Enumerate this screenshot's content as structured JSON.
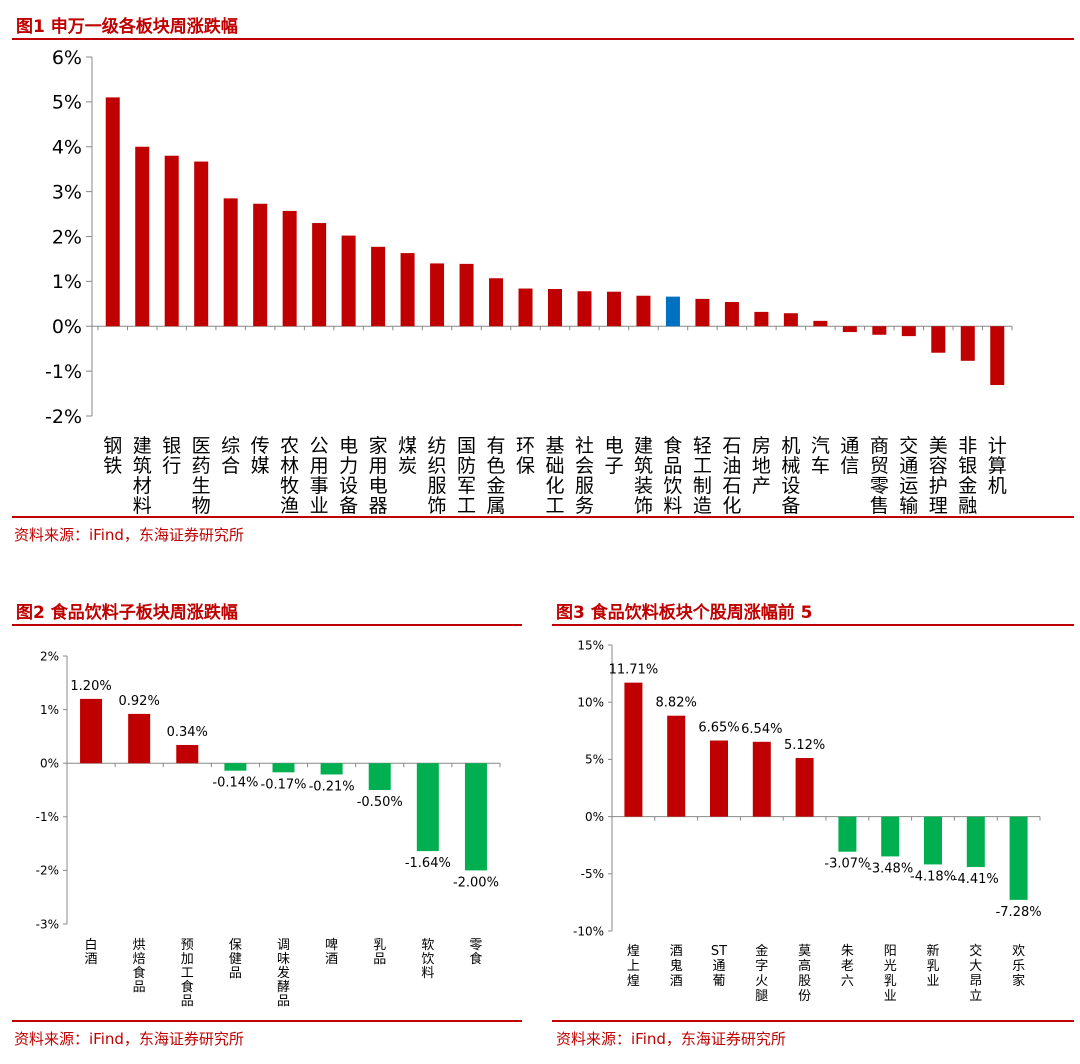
{
  "colors": {
    "brand": "#c00000",
    "neg": "#00b050",
    "highlight": "#0070c0",
    "bar": "#c00000"
  },
  "fig1": {
    "title": "图1 申万一级各板块周涨跌幅"
  },
  "fig2": {
    "title": "图2 食品饮料子板块周涨跌幅"
  },
  "fig3": {
    "title": "图3 食品饮料板块个股周涨幅前 5"
  },
  "source": "资料来源：iFind，东海证券研究所",
  "chart_data": [
    {
      "type": "bar",
      "title": "申万一级各板块周涨跌幅",
      "categories": [
        "钢铁",
        "建筑材料",
        "银行",
        "医药生物",
        "综合",
        "传媒",
        "农林牧渔",
        "公用事业",
        "电力设备",
        "家用电器",
        "煤炭",
        "纺织服饰",
        "国防军工",
        "有色金属",
        "环保",
        "基础化工",
        "社会服务",
        "电子",
        "建筑装饰",
        "食品饮料",
        "轻工制造",
        "石油石化",
        "房地产",
        "机械设备",
        "汽车",
        "通信",
        "商贸零售",
        "交通运输",
        "美容护理",
        "非银金融",
        "计算机"
      ],
      "values": [
        5.1,
        4.0,
        3.8,
        3.67,
        2.85,
        2.73,
        2.57,
        2.3,
        2.02,
        1.77,
        1.63,
        1.4,
        1.39,
        1.07,
        0.84,
        0.83,
        0.78,
        0.77,
        0.68,
        0.66,
        0.61,
        0.54,
        0.32,
        0.29,
        0.12,
        -0.13,
        -0.19,
        -0.22,
        -0.59,
        -0.77,
        -1.31
      ],
      "highlight": "食品饮料",
      "yticks": [
        "6%",
        "5%",
        "4%",
        "3%",
        "2%",
        "1%",
        "0%",
        "-1%",
        "-2%"
      ],
      "ylim": [
        -2,
        6
      ]
    },
    {
      "type": "bar",
      "title": "食品饮料子板块周涨跌幅",
      "categories": [
        "白酒",
        "烘焙食品",
        "预加工食品",
        "保健品",
        "调味发酵品",
        "啤酒",
        "乳品",
        "软饮料",
        "零食"
      ],
      "values": [
        1.2,
        0.92,
        0.34,
        -0.14,
        -0.17,
        -0.21,
        -0.5,
        -1.64,
        -2.0
      ],
      "labels": [
        "1.20%",
        "0.92%",
        "0.34%",
        "-0.14%",
        "-0.17%",
        "-0.21%",
        "-0.50%",
        "-1.64%",
        "-2.00%"
      ],
      "yticks": [
        "2%",
        "1%",
        "0%",
        "-1%",
        "-2%",
        "-3%"
      ],
      "ylim": [
        -3,
        2
      ]
    },
    {
      "type": "bar",
      "title": "食品饮料板块个股周涨幅前 5",
      "categories": [
        "煌上煌",
        "酒鬼酒",
        "ST通葡",
        "金字火腿",
        "莫高股份",
        "朱老六",
        "阳光乳业",
        "新乳业",
        "交大昂立",
        "欢乐家"
      ],
      "values": [
        11.71,
        8.82,
        6.65,
        6.54,
        5.12,
        -3.07,
        -3.48,
        -4.18,
        -4.41,
        -7.28
      ],
      "labels": [
        "11.71%",
        "8.82%",
        "6.65%",
        "6.54%",
        "5.12%",
        "-3.07%",
        "-3.48%",
        "-4.18%",
        "-4.41%",
        "-7.28%"
      ],
      "yticks": [
        "15%",
        "10%",
        "5%",
        "0%",
        "-5%",
        "-10%"
      ],
      "ylim": [
        -10,
        15
      ]
    }
  ]
}
